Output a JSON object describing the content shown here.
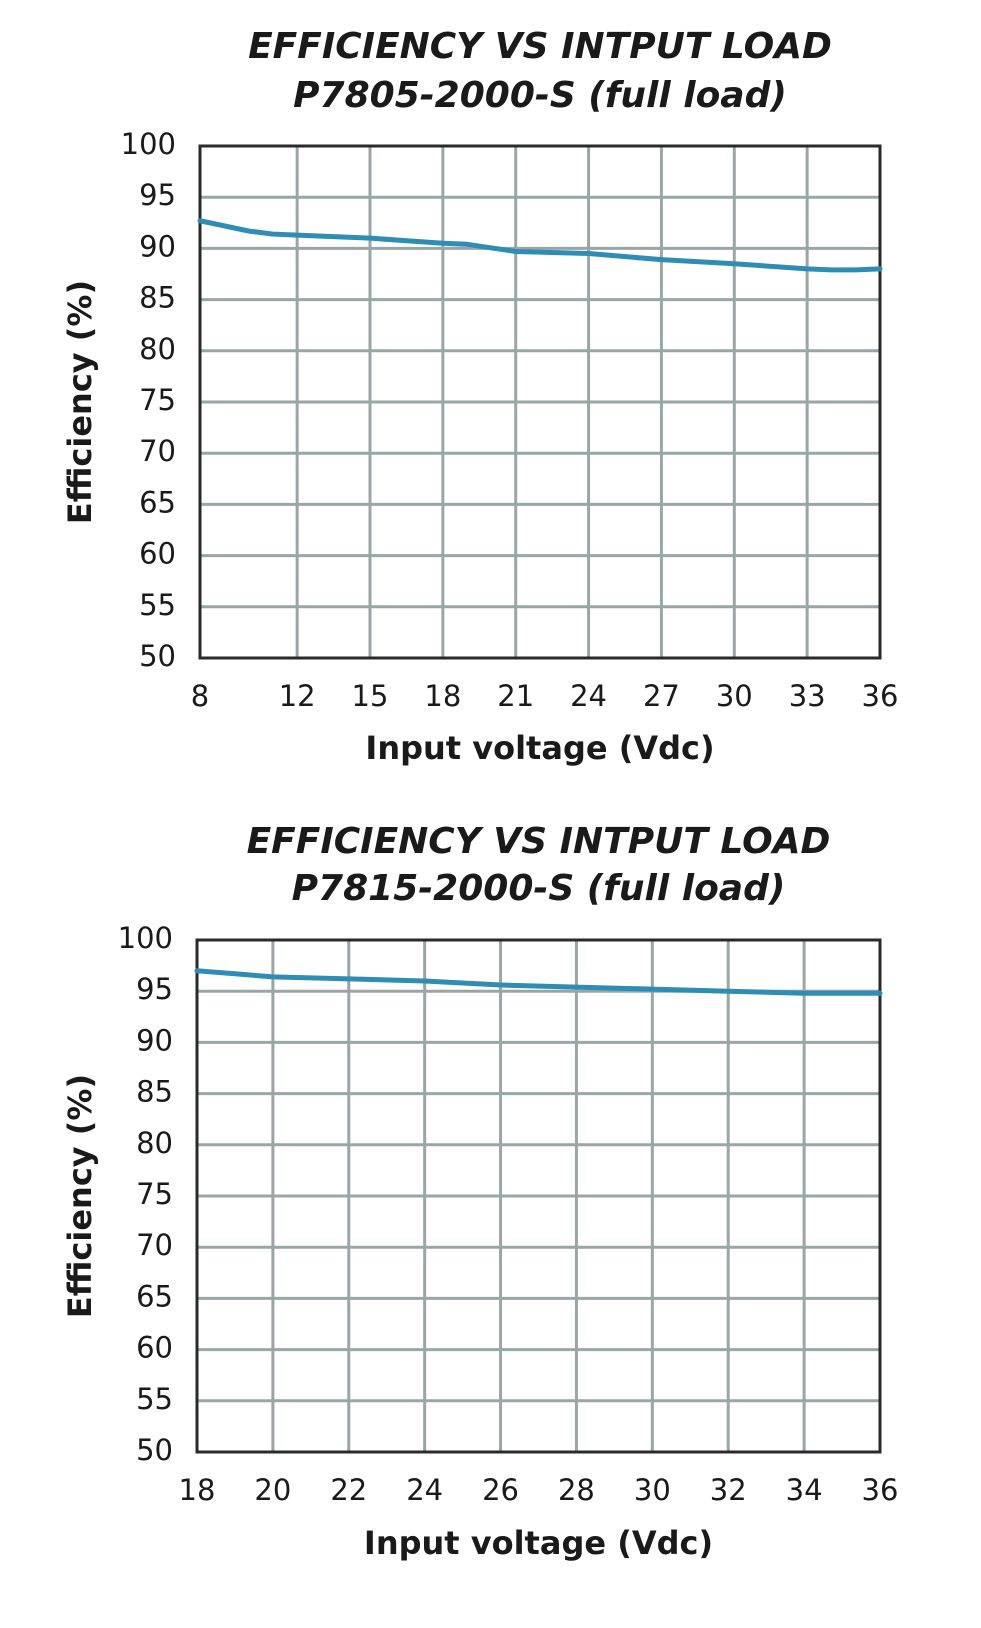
{
  "chart_data": [
    {
      "type": "line",
      "title": "EFFICIENCY VS INTPUT LOAD",
      "subtitle": "P7805-2000-S (full load)",
      "x_label": "Input voltage (Vdc)",
      "y_label": "Efficiency (%)",
      "x": [
        8,
        9,
        10,
        11,
        12,
        15,
        18,
        19,
        21,
        24,
        27,
        30,
        33,
        34,
        35,
        36
      ],
      "values": [
        92.7,
        92.2,
        91.7,
        91.4,
        91.3,
        91.0,
        90.5,
        90.4,
        89.7,
        89.5,
        88.9,
        88.5,
        88.0,
        87.9,
        87.9,
        88.0
      ],
      "color": "#2e8db5",
      "grid": true,
      "xlim": [
        8,
        36
      ],
      "xticks": [
        8,
        12,
        15,
        18,
        21,
        24,
        27,
        30,
        33,
        36
      ],
      "ylim": [
        50,
        100
      ],
      "yticks": [
        50,
        55,
        60,
        65,
        70,
        75,
        80,
        85,
        90,
        95,
        100
      ]
    },
    {
      "type": "line",
      "title": "EFFICIENCY VS INTPUT LOAD",
      "subtitle": "P7815-2000-S (full load)",
      "x_label": "Input voltage (Vdc)",
      "y_label": "Efficiency (%)",
      "x": [
        18,
        20,
        22,
        24,
        26,
        28,
        30,
        32,
        34,
        36
      ],
      "values": [
        97.0,
        96.4,
        96.2,
        96.0,
        95.6,
        95.4,
        95.2,
        95.0,
        94.8,
        94.8
      ],
      "color": "#2e8db5",
      "grid": true,
      "xlim": [
        18,
        36
      ],
      "xticks": [
        18,
        20,
        22,
        24,
        26,
        28,
        30,
        32,
        34,
        36
      ],
      "ylim": [
        50,
        100
      ],
      "yticks": [
        50,
        55,
        60,
        65,
        70,
        75,
        80,
        85,
        90,
        95,
        100
      ]
    }
  ]
}
